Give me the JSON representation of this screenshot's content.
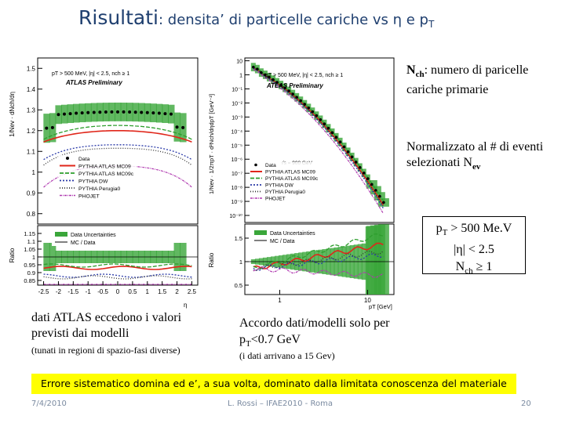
{
  "slide": {
    "title_main": "Risultati",
    "title_rest": ": densita’ di particelle cariche vs η e p",
    "title_sub": "T"
  },
  "plot_left": {
    "info": "pT > 500 MeV, |η| < 2.5, nch ≥ 1",
    "preliminary": "ATLAS Preliminary",
    "ylabel": "1/Nev · dNch/dη",
    "ratio_ylabel": "Ratio",
    "xlabel": "η",
    "yticks": [
      "1.5",
      "1.4",
      "1.3",
      "1.2",
      "1.1",
      "1",
      "0.9",
      "0.8"
    ],
    "ratio_yticks": [
      "1.15",
      "1.1",
      "1.05",
      "1",
      "0.95",
      "0.9",
      "0.85"
    ],
    "xticks": [
      "-2.5",
      "-2",
      "-1.5",
      "-1",
      "-0.5",
      "0",
      "0.5",
      "1",
      "1.5",
      "2",
      "2.5"
    ],
    "legend": [
      "Data",
      "PYTHIA ATLAS MC09",
      "PYTHIA ATLAS MC09c",
      "PYTHIA DW",
      "PYTHIA Perugia0",
      "PHOJET"
    ],
    "ratio_legend": [
      "Data Uncertainties",
      "MC / Data"
    ]
  },
  "plot_right": {
    "info": "pT > 500 MeV, |η| < 2.5, nch ≥ 1",
    "preliminary": "ATLAS Preliminary",
    "ylabel": "1/Nev · 1/2πpT · d²Nch/dηdpT [GeV⁻²]",
    "ratio_ylabel": "Ratio",
    "xlabel": "pT [GeV]",
    "yticks": [
      "10",
      "1",
      "10⁻¹",
      "10⁻²",
      "10⁻³",
      "10⁻⁴",
      "10⁻⁵",
      "10⁻⁶",
      "10⁻⁷",
      "10⁻⁸",
      "10⁻⁹",
      "10⁻¹⁰"
    ],
    "ratio_yticks": [
      "1.5",
      "1",
      "0.5"
    ],
    "xticks": [
      "1",
      "10"
    ],
    "energy": "√s = 900 GeV",
    "legend": [
      "Data",
      "PYTHIA ATLAS MC09",
      "PYTHIA ATLAS MC09c",
      "PYTHIA DW",
      "PYTHIA Perugia0",
      "PHOJET"
    ],
    "ratio_legend": [
      "Data Uncertainties",
      "MC / Data"
    ]
  },
  "notes": {
    "nch_sym": "N",
    "nch_sub": "ch",
    "nch_text": ": numero di paricelle cariche primarie",
    "norm_text": "Normalizzato al # di eventi selezionati N",
    "norm_sub": "ev",
    "cut_pt": "p",
    "cut_pt_sub": "T",
    "cut_pt_rest": " > 500 Me.V",
    "cut_eta": "|η| < 2.5",
    "cut_n": "N",
    "cut_n_sub": "ch",
    "cut_n_rest": " ≥ 1",
    "left_main": "dati ATLAS eccedono i valori previsti dai modelli",
    "left_sub": "(tunati in regioni di spazio-fasi diverse)",
    "mid_main_a": "Accordo dati/modelli solo per p",
    "mid_main_sub": "T",
    "mid_main_b": "<0.7 GeV",
    "mid_sub": "(i dati arrivano a 15 Gev)"
  },
  "banner": "Errore sistematico domina ed e’, a sua volta, dominato dalla limitata conoscenza del materiale",
  "footer": {
    "date": "7/4/2010",
    "center": "L. Rossi – IFAE2010 - Roma",
    "page": "20"
  },
  "colors": {
    "title": "#1f3f6f",
    "band": "#3aa63a",
    "mc09": "#e0261a",
    "mc09c": "#2d9e2d",
    "dw": "#2a3aa8",
    "perugia0": "#333333",
    "phojet": "#b03ab0",
    "banner": "#ffff00"
  }
}
